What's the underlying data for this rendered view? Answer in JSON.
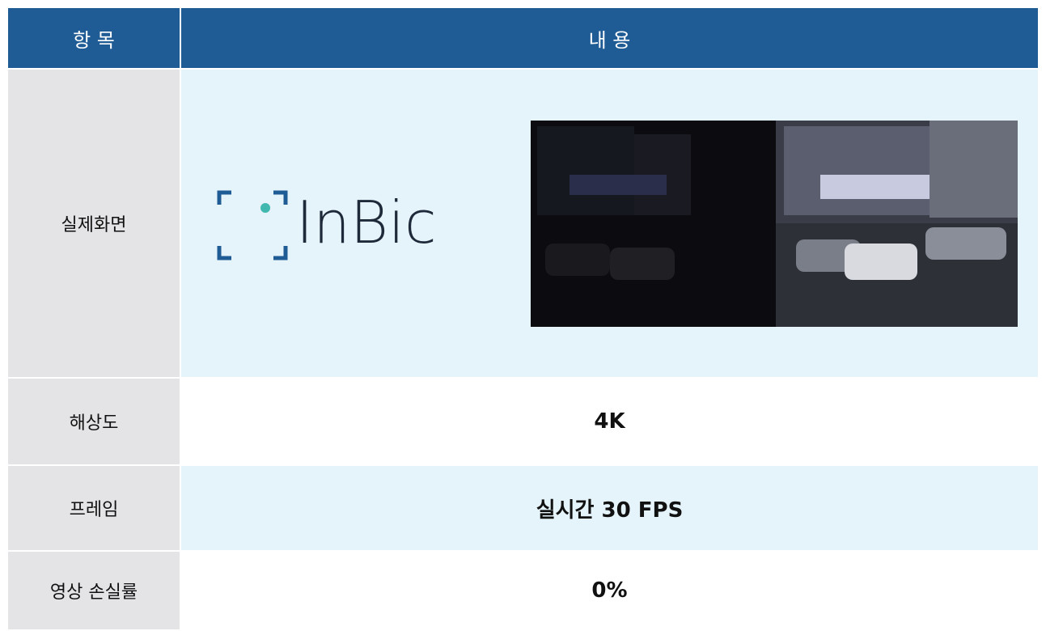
{
  "table": {
    "header": [
      "항 목",
      "내 용"
    ],
    "rows": [
      [
        "실제화면",
        "InBic"
      ],
      [
        "해상도",
        "4K"
      ],
      [
        "프레임",
        "실시간 30 FPS"
      ],
      [
        "영상 손실률",
        "0%"
      ]
    ]
  }
}
